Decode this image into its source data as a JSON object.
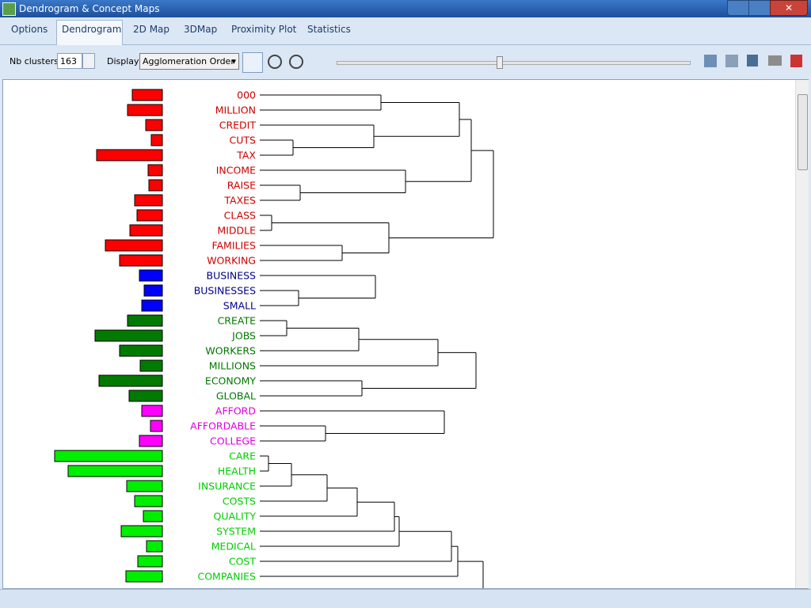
{
  "window": {
    "title": "Dendrogram & Concept Maps"
  },
  "tabs": [
    "Options",
    "Dendrogram",
    "2D Map",
    "3DMap",
    "Proximity Plot",
    "Statistics"
  ],
  "toolbar": {
    "nb_clusters_label": "Nb clusters:",
    "nb_clusters_value": "163",
    "display_label": "Display:",
    "display_value": "Agglomeration Order"
  },
  "clusters": [
    {
      "text_color": "#cc0000",
      "bar_color": "#ff0000",
      "words": [
        {
          "label": "000",
          "frequency": 38
        },
        {
          "label": "MILLION",
          "frequency": 44
        },
        {
          "label": "CREDIT",
          "frequency": 21
        },
        {
          "label": "CUTS",
          "frequency": 14
        },
        {
          "label": "TAX",
          "frequency": 83
        },
        {
          "label": "INCOME",
          "frequency": 18
        },
        {
          "label": "RAISE",
          "frequency": 17
        },
        {
          "label": "TAXES",
          "frequency": 35
        },
        {
          "label": "CLASS",
          "frequency": 32
        },
        {
          "label": "MIDDLE",
          "frequency": 41
        },
        {
          "label": "FAMILIES",
          "frequency": 72
        },
        {
          "label": "WORKING",
          "frequency": 54
        }
      ]
    },
    {
      "text_color": "#000088",
      "bar_color": "#0000ff",
      "words": [
        {
          "label": "BUSINESS",
          "frequency": 29
        },
        {
          "label": "BUSINESSES",
          "frequency": 23
        },
        {
          "label": "SMALL",
          "frequency": 26
        }
      ]
    },
    {
      "text_color": "#007700",
      "bar_color": "#007a00",
      "words": [
        {
          "label": "CREATE",
          "frequency": 44
        },
        {
          "label": "JOBS",
          "frequency": 85
        },
        {
          "label": "WORKERS",
          "frequency": 54
        },
        {
          "label": "MILLIONS",
          "frequency": 28
        },
        {
          "label": "ECONOMY",
          "frequency": 80
        },
        {
          "label": "GLOBAL",
          "frequency": 42
        }
      ]
    },
    {
      "text_color": "#dd00dd",
      "bar_color": "#ff00ff",
      "words": [
        {
          "label": "AFFORD",
          "frequency": 26
        },
        {
          "label": "AFFORDABLE",
          "frequency": 15
        },
        {
          "label": "COLLEGE",
          "frequency": 29
        }
      ]
    },
    {
      "text_color": "#00cc00",
      "bar_color": "#00ee00",
      "words": [
        {
          "label": "CARE",
          "frequency": 136
        },
        {
          "label": "HEALTH",
          "frequency": 119
        },
        {
          "label": "INSURANCE",
          "frequency": 45
        },
        {
          "label": "COSTS",
          "frequency": 35
        },
        {
          "label": "QUALITY",
          "frequency": 24
        },
        {
          "label": "SYSTEM",
          "frequency": 52
        },
        {
          "label": "MEDICAL",
          "frequency": 20
        },
        {
          "label": "COST",
          "frequency": 31
        },
        {
          "label": "COMPANIES",
          "frequency": 46
        }
      ]
    }
  ]
}
